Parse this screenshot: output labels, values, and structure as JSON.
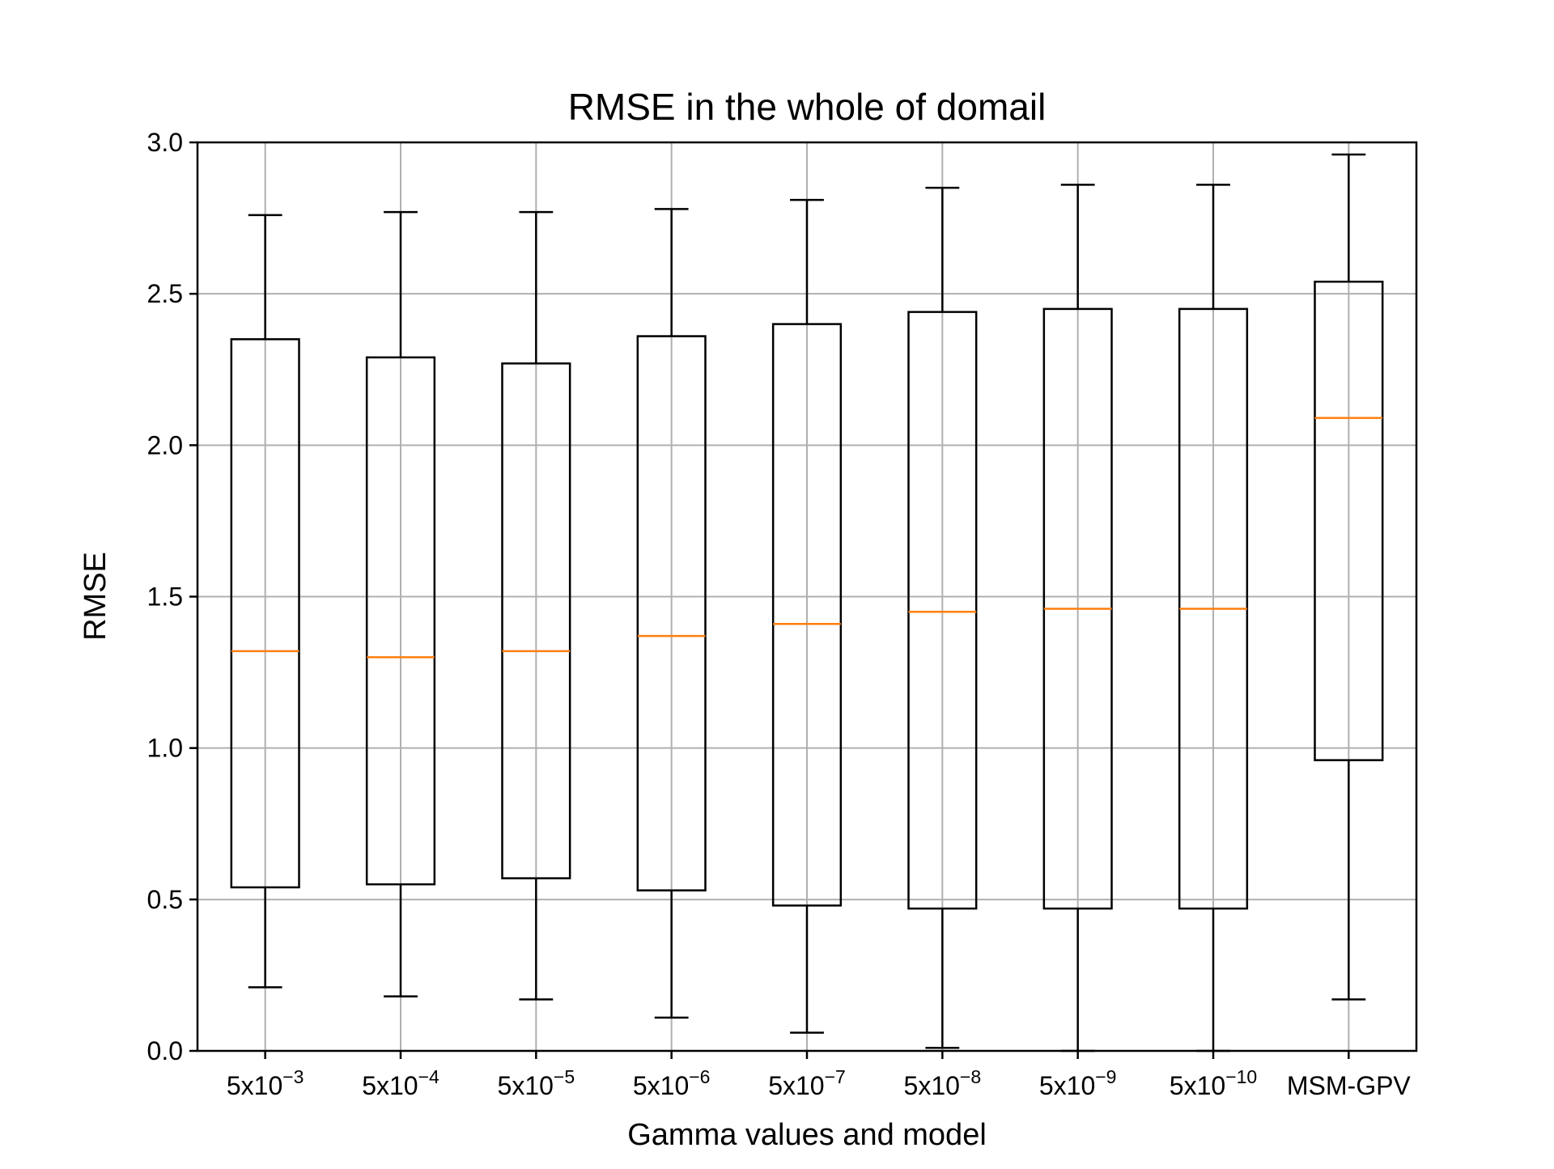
{
  "chart_data": {
    "type": "box",
    "title": "RMSE in the whole of domail",
    "xlabel": "Gamma values and model",
    "ylabel": "RMSE",
    "ylim": [
      0.0,
      3.0
    ],
    "yticks": [
      "0.0",
      "0.5",
      "1.0",
      "1.5",
      "2.0",
      "2.5",
      "3.0"
    ],
    "grid": true,
    "categories": [
      {
        "base": "5x10",
        "exp": "−3"
      },
      {
        "base": "5x10",
        "exp": "−4"
      },
      {
        "base": "5x10",
        "exp": "−5"
      },
      {
        "base": "5x10",
        "exp": "−6"
      },
      {
        "base": "5x10",
        "exp": "−7"
      },
      {
        "base": "5x10",
        "exp": "−8"
      },
      {
        "base": "5x10",
        "exp": "−9"
      },
      {
        "base": "5x10",
        "exp": "−10"
      },
      {
        "base": "MSM-GPV",
        "exp": ""
      }
    ],
    "boxes": [
      {
        "whisker_low": 0.21,
        "q1": 0.54,
        "median": 1.32,
        "q3": 2.35,
        "whisker_high": 2.76
      },
      {
        "whisker_low": 0.18,
        "q1": 0.55,
        "median": 1.3,
        "q3": 2.29,
        "whisker_high": 2.77
      },
      {
        "whisker_low": 0.17,
        "q1": 0.57,
        "median": 1.32,
        "q3": 2.27,
        "whisker_high": 2.77
      },
      {
        "whisker_low": 0.11,
        "q1": 0.53,
        "median": 1.37,
        "q3": 2.36,
        "whisker_high": 2.78
      },
      {
        "whisker_low": 0.06,
        "q1": 0.48,
        "median": 1.41,
        "q3": 2.4,
        "whisker_high": 2.81
      },
      {
        "whisker_low": 0.01,
        "q1": 0.47,
        "median": 1.45,
        "q3": 2.44,
        "whisker_high": 2.85
      },
      {
        "whisker_low": 0.0,
        "q1": 0.47,
        "median": 1.46,
        "q3": 2.45,
        "whisker_high": 2.86
      },
      {
        "whisker_low": 0.0,
        "q1": 0.47,
        "median": 1.46,
        "q3": 2.45,
        "whisker_high": 2.86
      },
      {
        "whisker_low": 0.17,
        "q1": 0.96,
        "median": 2.09,
        "q3": 2.54,
        "whisker_high": 2.96
      }
    ],
    "colors": {
      "box": "#000000",
      "median": "#ff7f0e",
      "grid": "#b0b0b0"
    }
  }
}
